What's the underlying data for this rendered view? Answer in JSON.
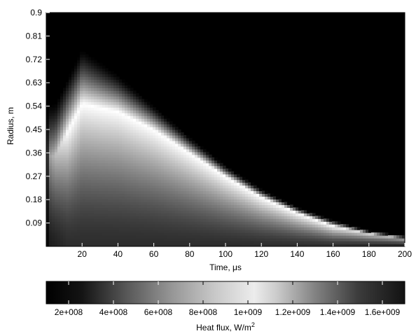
{
  "chart_data": {
    "type": "heatmap",
    "title": "",
    "xlabel": "Time, μs",
    "ylabel": "Radius, m",
    "xlim": [
      0,
      200
    ],
    "ylim": [
      0,
      0.9
    ],
    "x_ticks": [
      20,
      40,
      60,
      80,
      100,
      120,
      140,
      160,
      180,
      200
    ],
    "y_ticks": [
      0.09,
      0.18,
      0.27,
      0.36,
      0.45,
      0.54,
      0.63,
      0.72,
      0.81,
      0.9
    ],
    "colorscale": "gray",
    "colorbar": {
      "label": "Heat flux, W/m",
      "label_superscript": "2",
      "range": [
        100000000,
        1700000000
      ],
      "tick_labels": [
        "2e+008",
        "4e+008",
        "6e+008",
        "8e+008",
        "1e+009",
        "1.2e+009",
        "1.4e+009",
        "1.6e+009"
      ],
      "tick_values": [
        200000000,
        400000000,
        600000000,
        800000000,
        1000000000,
        1200000000,
        1400000000,
        1600000000
      ]
    },
    "ridge": {
      "description_points_time_us": [
        5,
        20,
        40,
        60,
        80,
        100,
        120,
        140,
        160,
        180,
        200
      ],
      "peak_radius_m": [
        0.35,
        0.55,
        0.52,
        0.45,
        0.36,
        0.27,
        0.19,
        0.13,
        0.08,
        0.05,
        0.03
      ],
      "outer_edge_radius_m": [
        0.55,
        0.76,
        0.66,
        0.54,
        0.42,
        0.31,
        0.22,
        0.15,
        0.1,
        0.06,
        0.04
      ]
    }
  }
}
